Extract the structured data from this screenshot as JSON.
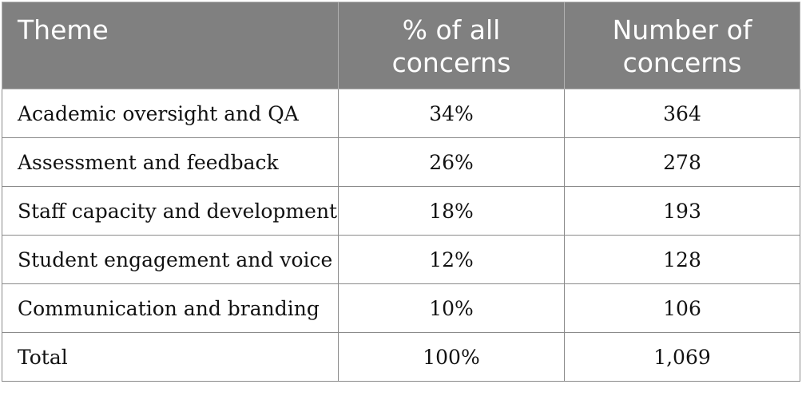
{
  "table": {
    "headers": {
      "theme_line1": "Theme",
      "pct_line1": "% of all",
      "pct_line2": "concerns",
      "num_line1": "Number of",
      "num_line2": "concerns"
    },
    "rows": [
      {
        "theme": "Academic oversight and QA",
        "pct": "34%",
        "count": "364"
      },
      {
        "theme": "Assessment and feedback",
        "pct": "26%",
        "count": "278"
      },
      {
        "theme": "Staff capacity and development",
        "pct": "18%",
        "count": "193"
      },
      {
        "theme": "Student engagement and voice",
        "pct": "12%",
        "count": "128"
      },
      {
        "theme": "Communication and branding",
        "pct": "10%",
        "count": "106"
      },
      {
        "theme": "Total",
        "pct": "100%",
        "count": "1,069"
      }
    ]
  },
  "colors": {
    "header_background": "#808080",
    "header_text": "#ffffff",
    "body_text": "#111111",
    "grid_lines": "#8a8a8a"
  }
}
